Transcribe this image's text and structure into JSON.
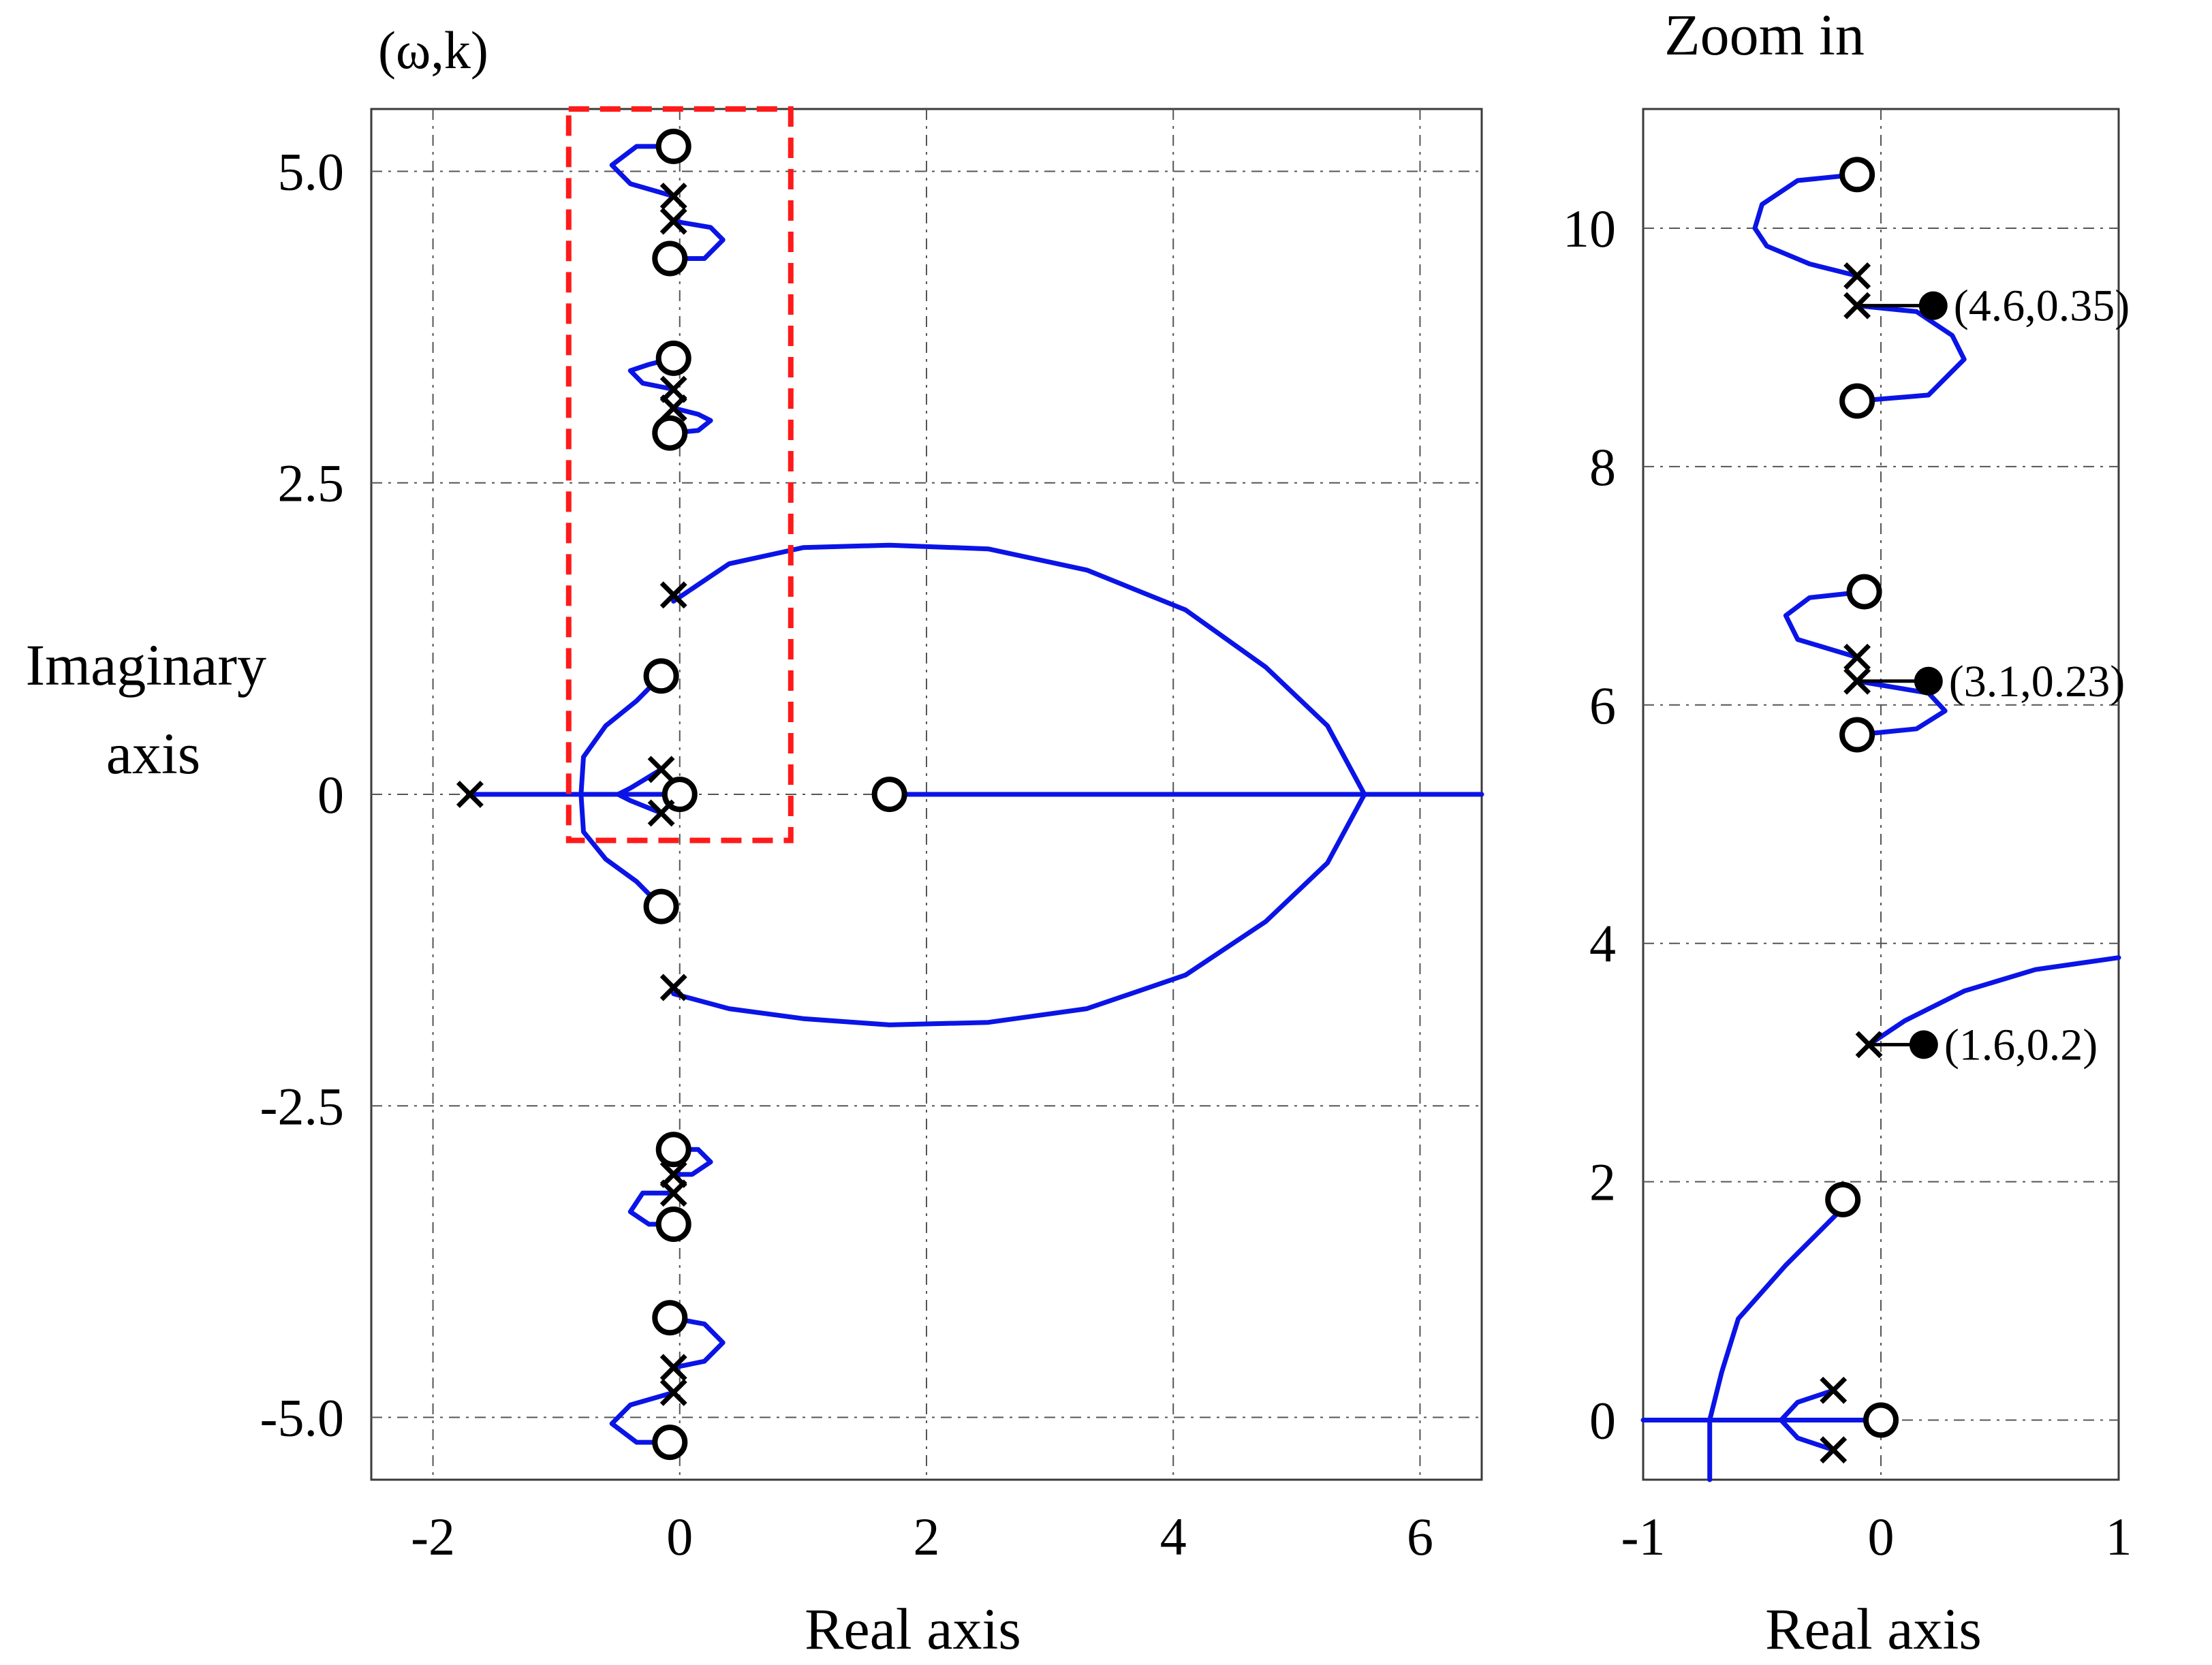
{
  "chart_data": [
    {
      "type": "root-locus",
      "title": "(ω,k)",
      "xlabel": "Real axis",
      "ylabel": "Imaginary axis",
      "xlim": [
        -2.5,
        6.5
      ],
      "ylim": [
        -5.5,
        5.5
      ],
      "xticks": [
        -2,
        0,
        2,
        4,
        6
      ],
      "yticks": [
        5.0,
        2.5,
        0,
        -2.5,
        -5.0
      ],
      "xtick_labels": [
        "-2",
        "0",
        "2",
        "4",
        "6"
      ],
      "ytick_labels": [
        "5.0",
        "2.5",
        "0",
        "-2.5",
        "-5.0"
      ],
      "grid": true,
      "zoom_region": {
        "x": [
          -0.9,
          0.9
        ],
        "y": [
          -0.37,
          5.5
        ]
      },
      "zeros": [
        [
          -0.05,
          5.2
        ],
        [
          -0.08,
          4.3
        ],
        [
          -0.05,
          3.5
        ],
        [
          -0.08,
          2.9
        ],
        [
          -0.15,
          0.95
        ],
        [
          0.0,
          0.0
        ],
        [
          -0.15,
          -0.9
        ],
        [
          1.7,
          0.0
        ],
        [
          -0.05,
          -2.85
        ],
        [
          -0.05,
          -3.45
        ],
        [
          -0.08,
          -4.2
        ],
        [
          -0.08,
          -5.2
        ]
      ],
      "poles": [
        [
          -1.7,
          0.0
        ],
        [
          -0.05,
          4.8
        ],
        [
          -0.05,
          4.6
        ],
        [
          -0.05,
          3.25
        ],
        [
          -0.05,
          3.1
        ],
        [
          -0.05,
          1.6
        ],
        [
          -0.15,
          0.2
        ],
        [
          -0.15,
          -0.15
        ],
        [
          -0.05,
          -1.55
        ],
        [
          -0.05,
          -3.05
        ],
        [
          -0.05,
          -3.2
        ],
        [
          -0.05,
          -4.6
        ],
        [
          -0.05,
          -4.8
        ]
      ],
      "series": [
        {
          "name": "real-axis-branch-left",
          "points": [
            [
              -1.7,
              0.0
            ],
            [
              -0.05,
              0.0
            ]
          ]
        },
        {
          "name": "real-axis-branch-right",
          "points": [
            [
              1.7,
              0.0
            ],
            [
              6.5,
              0.0
            ]
          ]
        },
        {
          "name": "large-loop-upper",
          "points": [
            [
              -0.05,
              1.55
            ],
            [
              0.4,
              1.85
            ],
            [
              1.0,
              1.98
            ],
            [
              1.7,
              2.0
            ],
            [
              2.5,
              1.97
            ],
            [
              3.3,
              1.8
            ],
            [
              4.1,
              1.48
            ],
            [
              4.75,
              1.02
            ],
            [
              5.25,
              0.55
            ],
            [
              5.55,
              0.0
            ]
          ]
        },
        {
          "name": "large-loop-lower",
          "points": [
            [
              5.55,
              0.0
            ],
            [
              5.25,
              -0.55
            ],
            [
              4.75,
              -1.02
            ],
            [
              4.1,
              -1.45
            ],
            [
              3.3,
              -1.72
            ],
            [
              2.5,
              -1.83
            ],
            [
              1.7,
              -1.85
            ],
            [
              1.0,
              -1.8
            ],
            [
              0.4,
              -1.72
            ],
            [
              -0.05,
              -1.6
            ]
          ]
        },
        {
          "name": "inner-branch-upper",
          "points": [
            [
              -0.8,
              0.0
            ],
            [
              -0.78,
              0.3
            ],
            [
              -0.6,
              0.55
            ],
            [
              -0.35,
              0.75
            ],
            [
              -0.15,
              0.95
            ]
          ]
        },
        {
          "name": "inner-branch-lower",
          "points": [
            [
              -0.8,
              0.0
            ],
            [
              -0.78,
              -0.3
            ],
            [
              -0.6,
              -0.52
            ],
            [
              -0.35,
              -0.7
            ],
            [
              -0.15,
              -0.9
            ]
          ]
        },
        {
          "name": "inner-pole-branch",
          "points": [
            [
              -0.15,
              0.2
            ],
            [
              -0.4,
              0.05
            ],
            [
              -0.5,
              0.0
            ],
            [
              -0.4,
              -0.05
            ],
            [
              -0.15,
              -0.15
            ]
          ]
        },
        {
          "name": "pair-1-upper-a",
          "points": [
            [
              -0.05,
              5.2
            ],
            [
              -0.35,
              5.2
            ],
            [
              -0.55,
              5.05
            ],
            [
              -0.4,
              4.9
            ],
            [
              -0.05,
              4.8
            ]
          ]
        },
        {
          "name": "pair-1-upper-b",
          "points": [
            [
              -0.05,
              4.6
            ],
            [
              0.25,
              4.55
            ],
            [
              0.35,
              4.45
            ],
            [
              0.2,
              4.3
            ],
            [
              -0.08,
              4.3
            ]
          ]
        },
        {
          "name": "pair-2-upper-a",
          "points": [
            [
              -0.05,
              3.5
            ],
            [
              -0.25,
              3.45
            ],
            [
              -0.4,
              3.4
            ],
            [
              -0.3,
              3.3
            ],
            [
              -0.05,
              3.25
            ]
          ]
        },
        {
          "name": "pair-2-upper-b",
          "points": [
            [
              -0.05,
              3.1
            ],
            [
              0.15,
              3.05
            ],
            [
              0.25,
              3.0
            ],
            [
              0.15,
              2.92
            ],
            [
              -0.08,
              2.9
            ]
          ]
        },
        {
          "name": "pair-2-lower-a",
          "points": [
            [
              -0.05,
              -2.85
            ],
            [
              0.15,
              -2.85
            ],
            [
              0.25,
              -2.95
            ],
            [
              0.1,
              -3.05
            ],
            [
              -0.05,
              -3.05
            ]
          ]
        },
        {
          "name": "pair-2-lower-b",
          "points": [
            [
              -0.05,
              -3.2
            ],
            [
              -0.3,
              -3.2
            ],
            [
              -0.4,
              -3.35
            ],
            [
              -0.25,
              -3.45
            ],
            [
              -0.05,
              -3.45
            ]
          ]
        },
        {
          "name": "pair-1-lower-a",
          "points": [
            [
              -0.08,
              -4.2
            ],
            [
              0.2,
              -4.25
            ],
            [
              0.35,
              -4.4
            ],
            [
              0.2,
              -4.55
            ],
            [
              -0.05,
              -4.6
            ]
          ]
        },
        {
          "name": "pair-1-lower-b",
          "points": [
            [
              -0.05,
              -4.8
            ],
            [
              -0.4,
              -4.9
            ],
            [
              -0.55,
              -5.05
            ],
            [
              -0.35,
              -5.2
            ],
            [
              -0.08,
              -5.2
            ]
          ]
        }
      ]
    },
    {
      "type": "root-locus",
      "title": "Zoom in",
      "xlabel": "Real axis",
      "xlim": [
        -1,
        1
      ],
      "ylim": [
        -0.5,
        11
      ],
      "xticks": [
        -1,
        0,
        1
      ],
      "yticks": [
        0,
        2,
        4,
        6,
        8,
        10
      ],
      "xtick_labels": [
        "-1",
        "0",
        "1"
      ],
      "ytick_labels": [
        "0",
        "2",
        "4",
        "6",
        "8",
        "10"
      ],
      "grid": true,
      "zeros": [
        [
          -0.1,
          10.45
        ],
        [
          -0.07,
          6.95
        ],
        [
          -0.1,
          5.75
        ],
        [
          -0.16,
          1.85
        ],
        [
          0.0,
          0.0
        ],
        [
          -0.1,
          8.55
        ]
      ],
      "poles": [
        [
          -0.1,
          9.6
        ],
        [
          -0.1,
          9.35
        ],
        [
          -0.1,
          6.4
        ],
        [
          -0.1,
          6.2
        ],
        [
          -0.05,
          3.15
        ],
        [
          -0.2,
          0.25
        ],
        [
          -0.2,
          -0.25
        ]
      ],
      "series": [
        {
          "name": "z-arc-top",
          "points": [
            [
              -0.1,
              10.45
            ],
            [
              -0.35,
              10.4
            ],
            [
              -0.5,
              10.2
            ],
            [
              -0.53,
              10.0
            ],
            [
              -0.48,
              9.85
            ],
            [
              -0.3,
              9.7
            ],
            [
              -0.1,
              9.6
            ]
          ]
        },
        {
          "name": "z-arc-second",
          "points": [
            [
              -0.1,
              9.35
            ],
            [
              0.15,
              9.3
            ],
            [
              0.3,
              9.1
            ],
            [
              0.35,
              8.9
            ],
            [
              0.2,
              8.6
            ],
            [
              -0.1,
              8.55
            ]
          ]
        },
        {
          "name": "z-arc-third",
          "points": [
            [
              -0.07,
              6.95
            ],
            [
              -0.3,
              6.9
            ],
            [
              -0.4,
              6.75
            ],
            [
              -0.35,
              6.55
            ],
            [
              -0.1,
              6.4
            ]
          ]
        },
        {
          "name": "z-arc-fourth",
          "points": [
            [
              -0.1,
              6.2
            ],
            [
              0.2,
              6.1
            ],
            [
              0.27,
              5.95
            ],
            [
              0.15,
              5.8
            ],
            [
              -0.1,
              5.75
            ]
          ]
        },
        {
          "name": "z-loop-segment",
          "points": [
            [
              -0.05,
              3.15
            ],
            [
              0.1,
              3.35
            ],
            [
              0.35,
              3.6
            ],
            [
              0.65,
              3.78
            ],
            [
              1.0,
              3.88
            ]
          ]
        },
        {
          "name": "z-inner-branch",
          "points": [
            [
              -0.15,
              1.8
            ],
            [
              -0.4,
              1.3
            ],
            [
              -0.6,
              0.85
            ],
            [
              -0.67,
              0.4
            ],
            [
              -0.72,
              0.0
            ],
            [
              -0.72,
              -0.5
            ]
          ]
        },
        {
          "name": "z-real-axis",
          "points": [
            [
              -1.0,
              0.0
            ],
            [
              0.0,
              0.0
            ]
          ]
        },
        {
          "name": "z-pole-branch",
          "points": [
            [
              -0.2,
              0.25
            ],
            [
              -0.35,
              0.15
            ],
            [
              -0.42,
              0.0
            ],
            [
              -0.35,
              -0.15
            ],
            [
              -0.2,
              -0.25
            ]
          ]
        }
      ],
      "annotations": [
        {
          "label": "(4.6,0.35)",
          "from": [
            -0.1,
            9.35
          ],
          "to": [
            0.22,
            9.35
          ]
        },
        {
          "label": "(3.1,0.23)",
          "from": [
            -0.1,
            6.2
          ],
          "to": [
            0.2,
            6.2
          ]
        },
        {
          "label": "(1.6,0.2)",
          "from": [
            -0.05,
            3.15
          ],
          "to": [
            0.18,
            3.15
          ]
        }
      ]
    }
  ]
}
